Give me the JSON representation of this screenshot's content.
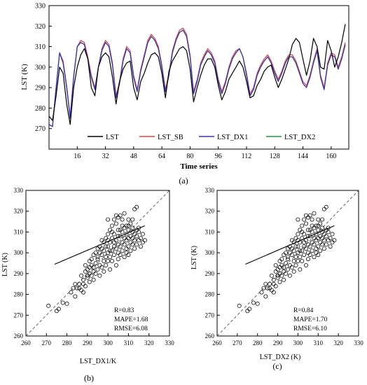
{
  "chart_data": [
    {
      "panel_label": "(a)",
      "type": "line",
      "xlabel": "Time series",
      "ylabel": "LST (K)",
      "xlim": [
        0,
        170
      ],
      "ylim": [
        260,
        330
      ],
      "xticks": [
        16,
        32,
        48,
        64,
        80,
        96,
        112,
        128,
        144,
        160
      ],
      "yticks": [
        270,
        280,
        290,
        300,
        310,
        320,
        330
      ],
      "legend_position": "bottom",
      "x": [
        0,
        2,
        4,
        6,
        8,
        10,
        12,
        14,
        16,
        18,
        20,
        22,
        24,
        26,
        28,
        30,
        32,
        34,
        36,
        38,
        40,
        42,
        44,
        46,
        48,
        50,
        52,
        54,
        56,
        58,
        60,
        62,
        64,
        66,
        68,
        70,
        72,
        74,
        76,
        78,
        80,
        82,
        84,
        86,
        88,
        90,
        92,
        94,
        96,
        98,
        100,
        102,
        104,
        106,
        108,
        110,
        112,
        114,
        116,
        118,
        120,
        122,
        124,
        126,
        128,
        130,
        132,
        134,
        136,
        138,
        140,
        142,
        144,
        146,
        148,
        150,
        152,
        154,
        156,
        158,
        160,
        162,
        164,
        166,
        168
      ],
      "series": [
        {
          "name": "LST",
          "color": "#000000",
          "values": [
            276,
            274,
            286,
            300,
            297,
            282,
            272,
            290,
            300,
            306,
            309,
            304,
            290,
            286,
            300,
            305,
            307,
            305,
            295,
            282,
            293,
            299,
            302,
            303,
            290,
            284,
            293,
            297,
            302,
            306,
            307,
            305,
            297,
            285,
            298,
            303,
            306,
            309,
            310,
            308,
            299,
            283,
            290,
            296,
            301,
            304,
            304,
            300,
            291,
            284,
            288,
            294,
            297,
            300,
            303,
            300,
            293,
            285,
            286,
            291,
            294,
            298,
            300,
            301,
            295,
            290,
            294,
            299,
            304,
            311,
            314,
            312,
            304,
            296,
            303,
            314,
            310,
            300,
            299,
            313,
            308,
            300,
            305,
            312,
            321
          ]
        },
        {
          "name": "LST_SB",
          "color": "#e0403c",
          "values": [
            272,
            271,
            290,
            307,
            303,
            291,
            276,
            296,
            310,
            313,
            312,
            305,
            296,
            290,
            300,
            309,
            313,
            311,
            302,
            286,
            293,
            304,
            310,
            308,
            296,
            289,
            299,
            306,
            313,
            316,
            314,
            310,
            301,
            289,
            297,
            308,
            314,
            318,
            319,
            316,
            306,
            288,
            294,
            302,
            306,
            309,
            307,
            303,
            294,
            288,
            293,
            300,
            305,
            308,
            309,
            305,
            297,
            287,
            290,
            297,
            301,
            304,
            306,
            303,
            298,
            294,
            298,
            303,
            306,
            306,
            303,
            298,
            293,
            291,
            296,
            303,
            309,
            296,
            290,
            302,
            307,
            306,
            300,
            305,
            312
          ]
        },
        {
          "name": "LST_DX1",
          "color": "#3b2fc7",
          "values": [
            272,
            271,
            290,
            307,
            302,
            290,
            275,
            295,
            310,
            312,
            311,
            304,
            295,
            289,
            300,
            308,
            312,
            310,
            301,
            285,
            292,
            303,
            309,
            307,
            295,
            288,
            298,
            305,
            312,
            315,
            313,
            309,
            300,
            288,
            296,
            307,
            313,
            317,
            318,
            315,
            305,
            287,
            293,
            301,
            305,
            308,
            306,
            302,
            293,
            287,
            292,
            299,
            304,
            307,
            309,
            305,
            296,
            286,
            289,
            296,
            300,
            303,
            305,
            302,
            297,
            293,
            297,
            302,
            305,
            305,
            302,
            297,
            292,
            290,
            295,
            302,
            308,
            295,
            289,
            301,
            306,
            305,
            299,
            304,
            311
          ]
        },
        {
          "name": "LST_DX2",
          "color": "#1a9a3a",
          "values": [
            272,
            271,
            290,
            307,
            302,
            290,
            275,
            295,
            310,
            312,
            311,
            304,
            295,
            289,
            300,
            308,
            312,
            310,
            301,
            285,
            292,
            303,
            309,
            307,
            295,
            288,
            298,
            305,
            312,
            315,
            313,
            309,
            300,
            288,
            296,
            307,
            313,
            317,
            318,
            315,
            305,
            287,
            293,
            301,
            305,
            308,
            306,
            302,
            293,
            287,
            292,
            299,
            304,
            307,
            309,
            305,
            296,
            286,
            289,
            296,
            300,
            303,
            305,
            302,
            297,
            293,
            297,
            302,
            305,
            305,
            302,
            297,
            292,
            290,
            295,
            302,
            308,
            295,
            289,
            301,
            306,
            305,
            299,
            304,
            311
          ]
        }
      ]
    },
    {
      "panel_label": "(b)",
      "type": "scatter",
      "xlabel": "LST_DX1/K",
      "ylabel": "LST (K)",
      "xlim": [
        260,
        330
      ],
      "ylim": [
        260,
        330
      ],
      "ticks": [
        260,
        270,
        280,
        290,
        300,
        310,
        320,
        330
      ],
      "stats": [
        "R=0.83",
        "MAPE=1.68",
        "RMSE=6.08"
      ],
      "fit_line": [
        [
          274,
          294.5
        ],
        [
          318,
          313
        ]
      ],
      "identity_line": true
    },
    {
      "panel_label": "(c)",
      "type": "scatter",
      "xlabel": "LST_DX2 (K)",
      "ylabel": "LST (K)",
      "xlim": [
        260,
        330
      ],
      "ylim": [
        260,
        330
      ],
      "ticks": [
        260,
        270,
        280,
        290,
        300,
        310,
        320,
        330
      ],
      "stats": [
        "R=0.84",
        "MAPE=1.70",
        "RMSE=6.10"
      ],
      "fit_line": [
        [
          274,
          294.5
        ],
        [
          318,
          313
        ]
      ],
      "identity_line": true
    }
  ],
  "scatter_points": [
    [
      271,
      274.5
    ],
    [
      275,
      272
    ],
    [
      276,
      273
    ],
    [
      278,
      276
    ],
    [
      280,
      275.5
    ],
    [
      282,
      281
    ],
    [
      283,
      283
    ],
    [
      284,
      279
    ],
    [
      285,
      283
    ],
    [
      286,
      285
    ],
    [
      287,
      282
    ],
    [
      288,
      287
    ],
    [
      288,
      281
    ],
    [
      289,
      284
    ],
    [
      290,
      288
    ],
    [
      290,
      292
    ],
    [
      291,
      286
    ],
    [
      291,
      290
    ],
    [
      292,
      289
    ],
    [
      292,
      294
    ],
    [
      293,
      287
    ],
    [
      293,
      291
    ],
    [
      294,
      295
    ],
    [
      294,
      290
    ],
    [
      295,
      292
    ],
    [
      295,
      297
    ],
    [
      296,
      289
    ],
    [
      296,
      294
    ],
    [
      297,
      293
    ],
    [
      297,
      299
    ],
    [
      298,
      296
    ],
    [
      298,
      291
    ],
    [
      298,
      301
    ],
    [
      299,
      298
    ],
    [
      299,
      294
    ],
    [
      300,
      300
    ],
    [
      300,
      296
    ],
    [
      300,
      303
    ],
    [
      301,
      292
    ],
    [
      301,
      298
    ],
    [
      301,
      305
    ],
    [
      302,
      301
    ],
    [
      302,
      296
    ],
    [
      302,
      307
    ],
    [
      303,
      303
    ],
    [
      303,
      299
    ],
    [
      303,
      309
    ],
    [
      304,
      294
    ],
    [
      304,
      302
    ],
    [
      304,
      306
    ],
    [
      305,
      300
    ],
    [
      305,
      297
    ],
    [
      305,
      311
    ],
    [
      305,
      304
    ],
    [
      306,
      303
    ],
    [
      306,
      308
    ],
    [
      306,
      299
    ],
    [
      307,
      301
    ],
    [
      307,
      305
    ],
    [
      307,
      310
    ],
    [
      307,
      313
    ],
    [
      308,
      298
    ],
    [
      308,
      304
    ],
    [
      308,
      307
    ],
    [
      309,
      302
    ],
    [
      309,
      306
    ],
    [
      309,
      309
    ],
    [
      309,
      300
    ],
    [
      310,
      303
    ],
    [
      310,
      307
    ],
    [
      310,
      311
    ],
    [
      310,
      299
    ],
    [
      311,
      305
    ],
    [
      311,
      308
    ],
    [
      311,
      301
    ],
    [
      312,
      304
    ],
    [
      312,
      307
    ],
    [
      312,
      310
    ],
    [
      313,
      302
    ],
    [
      313,
      306
    ],
    [
      313,
      309
    ],
    [
      314,
      304
    ],
    [
      314,
      308
    ],
    [
      315,
      306
    ],
    [
      315,
      310
    ],
    [
      316,
      303
    ],
    [
      316,
      307
    ],
    [
      317,
      305
    ],
    [
      317,
      309
    ],
    [
      318,
      306
    ],
    [
      294,
      300
    ],
    [
      296,
      303
    ],
    [
      297,
      306
    ],
    [
      299,
      307
    ],
    [
      300,
      309
    ],
    [
      301,
      311
    ],
    [
      302,
      313
    ],
    [
      303,
      316
    ],
    [
      305,
      317
    ],
    [
      306,
      318
    ],
    [
      308,
      319
    ],
    [
      310,
      316
    ],
    [
      312,
      316
    ],
    [
      313,
      321
    ],
    [
      314,
      322
    ],
    [
      300,
      316
    ],
    [
      304,
      314
    ],
    [
      292,
      297
    ],
    [
      295,
      302
    ],
    [
      298,
      305
    ],
    [
      289,
      294
    ],
    [
      291,
      296
    ],
    [
      293,
      299
    ],
    [
      296,
      300
    ],
    [
      299,
      303
    ],
    [
      301,
      301
    ],
    [
      303,
      305
    ],
    [
      305,
      308
    ],
    [
      306,
      311
    ],
    [
      308,
      312
    ],
    [
      310,
      313
    ],
    [
      311,
      314
    ],
    [
      312,
      312
    ],
    [
      314,
      311
    ],
    [
      315,
      312
    ],
    [
      309,
      313
    ],
    [
      307,
      316
    ],
    [
      304,
      318
    ],
    [
      302,
      310
    ],
    [
      300,
      306
    ],
    [
      297,
      302
    ],
    [
      295,
      298
    ],
    [
      293,
      293
    ],
    [
      290,
      289
    ],
    [
      288,
      285
    ],
    [
      286,
      283
    ],
    [
      284,
      285
    ],
    [
      287,
      289
    ],
    [
      289,
      291
    ],
    [
      291,
      293
    ]
  ]
}
